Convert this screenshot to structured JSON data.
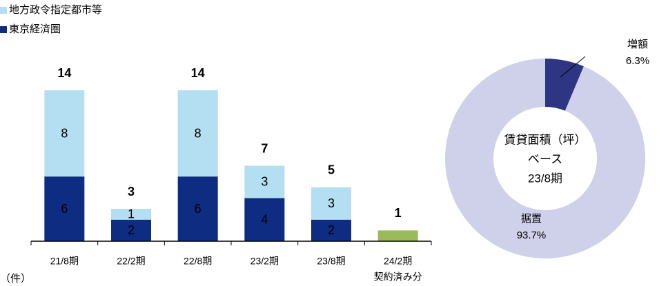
{
  "chart_data": [
    {
      "type": "bar",
      "categories": [
        "21/8期",
        "22/2期",
        "22/8期",
        "23/2期",
        "23/8期",
        "24/2期"
      ],
      "category_notes": [
        null,
        null,
        null,
        null,
        null,
        "契約済み分"
      ],
      "series": [
        {
          "name": "東京経済圏",
          "color": "#0e2c82",
          "label_color": "#ffffff",
          "values": [
            6,
            2,
            6,
            4,
            2,
            null
          ]
        },
        {
          "name": "地方政令指定都市等",
          "color": "#b4def2",
          "label_color": "#000000",
          "values": [
            8,
            1,
            8,
            3,
            3,
            null
          ]
        },
        {
          "color": "#9bbb59",
          "values": [
            null,
            null,
            null,
            null,
            null,
            1
          ]
        }
      ],
      "totals": [
        14,
        3,
        14,
        7,
        5,
        1
      ],
      "totals_colors": [
        "#000000",
        "#000000",
        "#000000",
        "#000000",
        "#000000",
        "#c00000"
      ],
      "ylim": [
        0,
        14
      ],
      "y_unit": "（件）"
    },
    {
      "type": "donut",
      "categories": [
        "増額",
        "据置"
      ],
      "values": [
        6.3,
        93.7
      ],
      "value_labels": [
        "6.3%",
        "93.7%"
      ],
      "colors": [
        "#2e3582",
        "#cfd0ea"
      ],
      "center_label": [
        "賃貸面積（坪）",
        "ベース",
        "23/8期"
      ]
    }
  ]
}
